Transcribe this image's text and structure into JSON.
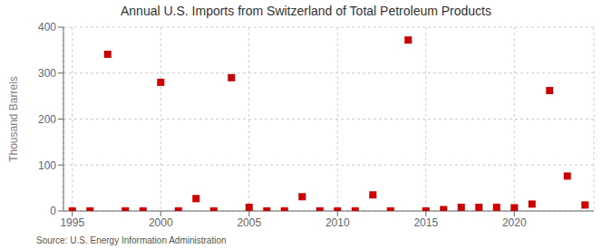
{
  "chart_data": {
    "type": "scatter",
    "title": "Annual U.S. Imports from Switzerland of Total Petroleum Products",
    "ylabel": "Thousand Barrels",
    "source": "Source: U.S. Energy Information Administration",
    "x": [
      1995,
      1996,
      1997,
      1998,
      1999,
      2000,
      2001,
      2002,
      2003,
      2004,
      2005,
      2006,
      2007,
      2008,
      2009,
      2010,
      2011,
      2012,
      2013,
      2014,
      2015,
      2016,
      2017,
      2018,
      2019,
      2020,
      2021,
      2022,
      2023,
      2024
    ],
    "values": [
      0,
      0,
      341,
      0,
      0,
      280,
      0,
      27,
      0,
      290,
      8,
      0,
      0,
      31,
      0,
      0,
      0,
      35,
      0,
      372,
      0,
      3,
      8,
      8,
      8,
      7,
      15,
      262,
      76,
      13
    ],
    "color": "#cc0000",
    "marker": "square",
    "xlim": [
      1994.5,
      2024.5
    ],
    "ylim": [
      0,
      400
    ],
    "xticks": [
      1995,
      2000,
      2005,
      2010,
      2015,
      2020
    ],
    "yticks": [
      0,
      100,
      200,
      300,
      400
    ],
    "grid": true
  }
}
